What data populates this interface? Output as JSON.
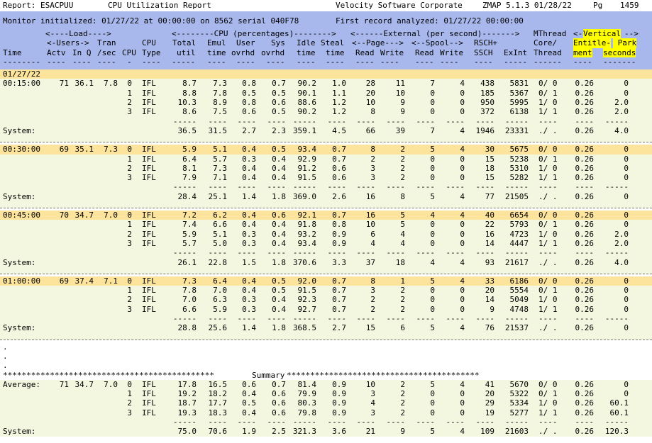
{
  "report": {
    "report_label": "Report: ESACPUU",
    "title": "CPU Utilization Report",
    "vendor": "Velocity Software Corporate",
    "version_date": "ZMAP 5.1.3 01/28/22",
    "page_label": "Pg",
    "page_number": "1459",
    "monitor_line": "Monitor initialized: 01/27/22 at 00:00:00 on 8562 serial 040F78",
    "first_record": "First record analyzed: 01/27/22 00:00:00"
  },
  "headers": {
    "row1": {
      "load": "<----Load---->",
      "cpu_pct": "<--------CPU (percentages)-------->",
      "external": "<------External (per second)------->",
      "mthread": "MThread",
      "vertical_l": "<-",
      "vertical": "Vertical",
      "vertical_r": "-->"
    },
    "row2": {
      "users": "<-Users->",
      "tran": "Tran",
      "cpu": "CPU",
      "total": "Total",
      "emul": "Emul",
      "user": "User",
      "sys": "Sys",
      "idle": "Idle",
      "steal": "Steal",
      "page": "<--Page--->",
      "spool": "<--Spool-->",
      "rsch": "RSCH+",
      "core": "Core/",
      "entitle": "Entitle-",
      "park": " Park"
    },
    "row3": {
      "time": "Time",
      "actv": "Actv",
      "inq": "In Q",
      "sec": "/sec",
      "cpu": "CPU",
      "type": "Type",
      "util": "util",
      "emul_time": "time",
      "ovrhd1": "ovrhd",
      "ovrhd2": "ovrhd",
      "idle_time": "time",
      "steal_time": "time",
      "read1": "Read",
      "write1": "Write",
      "read2": "Read",
      "write2": "Write",
      "ssch": "SSCH",
      "exint": "ExInt",
      "thread": "Thread",
      "ment": "ment",
      "seconds": "seconds"
    },
    "dash_row": "-------- ---- ---- ---- -  ----  -----  ----  ----  ----  ----  ----  ----  ----  ----  ----  ----  ----- ----- ------ ---- ------- ",
    "dashes": {
      "time": "--------",
      "actv": "----",
      "inq": "----",
      "sec": "----",
      "cpu": "-",
      "type": "----",
      "util": "-----",
      "emul": "----",
      "user": "----",
      "sys": "----",
      "idle": "----",
      "steal": "----",
      "read1": "----",
      "write1": "----",
      "read2": "----",
      "write2": "----",
      "rsch": "----",
      "exint": "-----",
      "thread": "------",
      "ment": "----",
      "seconds": "-------"
    }
  },
  "date_label": "01/27/22",
  "groups": [
    {
      "time": "00:15:00",
      "actv": "71",
      "inq": "36.1",
      "tran": "7.8",
      "rows": [
        {
          "cpu": "0",
          "type": "IFL",
          "total": "8.7",
          "emul": "7.3",
          "user": "0.8",
          "sys": "0.7",
          "idle": "90.2",
          "steal": "1.0",
          "pread": "28",
          "pwrite": "11",
          "sread": "7",
          "swrite": "4",
          "rsch": "438",
          "exint": "5831",
          "mthread": "0/ 0",
          "ent": "0.26",
          "park": "0"
        },
        {
          "cpu": "1",
          "type": "IFL",
          "total": "8.8",
          "emul": "7.8",
          "user": "0.5",
          "sys": "0.5",
          "idle": "90.1",
          "steal": "1.1",
          "pread": "20",
          "pwrite": "10",
          "sread": "0",
          "swrite": "0",
          "rsch": "185",
          "exint": "5367",
          "mthread": "0/ 1",
          "ent": "0.26",
          "park": "0"
        },
        {
          "cpu": "2",
          "type": "IFL",
          "total": "10.3",
          "emul": "8.9",
          "user": "0.8",
          "sys": "0.6",
          "idle": "88.6",
          "steal": "1.2",
          "pread": "10",
          "pwrite": "9",
          "sread": "0",
          "swrite": "0",
          "rsch": "950",
          "exint": "5995",
          "mthread": "1/ 0",
          "ent": "0.26",
          "park": "2.0"
        },
        {
          "cpu": "3",
          "type": "IFL",
          "total": "8.6",
          "emul": "7.5",
          "user": "0.6",
          "sys": "0.5",
          "idle": "90.2",
          "steal": "1.2",
          "pread": "8",
          "pwrite": "9",
          "sread": "0",
          "swrite": "0",
          "rsch": "372",
          "exint": "6138",
          "mthread": "1/ 1",
          "ent": "0.26",
          "park": "2.0"
        }
      ],
      "system": {
        "label": "System:",
        "total": "36.5",
        "emul": "31.5",
        "user": "2.7",
        "sys": "2.3",
        "idle": "359.1",
        "steal": "4.5",
        "pread": "66",
        "pwrite": "39",
        "sread": "7",
        "swrite": "4",
        "rsch": "1946",
        "exint": "23331",
        "mthread": "./ .",
        "ent": "0.26",
        "park": "4.0"
      }
    },
    {
      "time": "00:30:00",
      "actv": "69",
      "inq": "35.1",
      "tran": "7.3",
      "rows": [
        {
          "cpu": "0",
          "type": "IFL",
          "total": "5.9",
          "emul": "5.1",
          "user": "0.4",
          "sys": "0.5",
          "idle": "93.4",
          "steal": "0.7",
          "pread": "8",
          "pwrite": "2",
          "sread": "5",
          "swrite": "4",
          "rsch": "30",
          "exint": "5675",
          "mthread": "0/ 0",
          "ent": "0.26",
          "park": "0"
        },
        {
          "cpu": "1",
          "type": "IFL",
          "total": "6.4",
          "emul": "5.7",
          "user": "0.3",
          "sys": "0.4",
          "idle": "92.9",
          "steal": "0.7",
          "pread": "2",
          "pwrite": "2",
          "sread": "0",
          "swrite": "0",
          "rsch": "15",
          "exint": "5238",
          "mthread": "0/ 1",
          "ent": "0.26",
          "park": "0"
        },
        {
          "cpu": "2",
          "type": "IFL",
          "total": "8.1",
          "emul": "7.3",
          "user": "0.4",
          "sys": "0.4",
          "idle": "91.2",
          "steal": "0.6",
          "pread": "3",
          "pwrite": "2",
          "sread": "0",
          "swrite": "0",
          "rsch": "18",
          "exint": "5310",
          "mthread": "1/ 0",
          "ent": "0.26",
          "park": "0"
        },
        {
          "cpu": "3",
          "type": "IFL",
          "total": "7.9",
          "emul": "7.1",
          "user": "0.4",
          "sys": "0.4",
          "idle": "91.5",
          "steal": "0.6",
          "pread": "3",
          "pwrite": "2",
          "sread": "0",
          "swrite": "0",
          "rsch": "15",
          "exint": "5282",
          "mthread": "1/ 1",
          "ent": "0.26",
          "park": "0"
        }
      ],
      "system": {
        "label": "System:",
        "total": "28.4",
        "emul": "25.1",
        "user": "1.4",
        "sys": "1.8",
        "idle": "369.0",
        "steal": "2.6",
        "pread": "16",
        "pwrite": "8",
        "sread": "5",
        "swrite": "4",
        "rsch": "77",
        "exint": "21505",
        "mthread": "./ .",
        "ent": "0.26",
        "park": "0"
      }
    },
    {
      "time": "00:45:00",
      "actv": "70",
      "inq": "34.7",
      "tran": "7.0",
      "rows": [
        {
          "cpu": "0",
          "type": "IFL",
          "total": "7.2",
          "emul": "6.2",
          "user": "0.4",
          "sys": "0.6",
          "idle": "92.1",
          "steal": "0.7",
          "pread": "16",
          "pwrite": "5",
          "sread": "4",
          "swrite": "4",
          "rsch": "40",
          "exint": "6654",
          "mthread": "0/ 0",
          "ent": "0.26",
          "park": "0"
        },
        {
          "cpu": "1",
          "type": "IFL",
          "total": "7.4",
          "emul": "6.6",
          "user": "0.4",
          "sys": "0.4",
          "idle": "91.8",
          "steal": "0.8",
          "pread": "10",
          "pwrite": "5",
          "sread": "0",
          "swrite": "0",
          "rsch": "22",
          "exint": "5793",
          "mthread": "0/ 1",
          "ent": "0.26",
          "park": "0"
        },
        {
          "cpu": "2",
          "type": "IFL",
          "total": "5.9",
          "emul": "5.1",
          "user": "0.3",
          "sys": "0.4",
          "idle": "93.2",
          "steal": "0.9",
          "pread": "6",
          "pwrite": "4",
          "sread": "0",
          "swrite": "0",
          "rsch": "16",
          "exint": "4723",
          "mthread": "1/ 0",
          "ent": "0.26",
          "park": "2.0"
        },
        {
          "cpu": "3",
          "type": "IFL",
          "total": "5.7",
          "emul": "5.0",
          "user": "0.3",
          "sys": "0.4",
          "idle": "93.4",
          "steal": "0.9",
          "pread": "4",
          "pwrite": "4",
          "sread": "0",
          "swrite": "0",
          "rsch": "14",
          "exint": "4447",
          "mthread": "1/ 1",
          "ent": "0.26",
          "park": "2.0"
        }
      ],
      "system": {
        "label": "System:",
        "total": "26.1",
        "emul": "22.8",
        "user": "1.5",
        "sys": "1.8",
        "idle": "370.6",
        "steal": "3.3",
        "pread": "37",
        "pwrite": "18",
        "sread": "4",
        "swrite": "4",
        "rsch": "93",
        "exint": "21617",
        "mthread": "./ .",
        "ent": "0.26",
        "park": "4.0"
      }
    },
    {
      "time": "01:00:00",
      "actv": "69",
      "inq": "37.4",
      "tran": "7.1",
      "rows": [
        {
          "cpu": "0",
          "type": "IFL",
          "total": "7.3",
          "emul": "6.4",
          "user": "0.4",
          "sys": "0.5",
          "idle": "92.0",
          "steal": "0.7",
          "pread": "8",
          "pwrite": "1",
          "sread": "5",
          "swrite": "4",
          "rsch": "33",
          "exint": "6186",
          "mthread": "0/ 0",
          "ent": "0.26",
          "park": "0"
        },
        {
          "cpu": "1",
          "type": "IFL",
          "total": "7.8",
          "emul": "7.0",
          "user": "0.4",
          "sys": "0.5",
          "idle": "91.5",
          "steal": "0.7",
          "pread": "3",
          "pwrite": "2",
          "sread": "0",
          "swrite": "0",
          "rsch": "20",
          "exint": "5554",
          "mthread": "0/ 1",
          "ent": "0.26",
          "park": "0"
        },
        {
          "cpu": "2",
          "type": "IFL",
          "total": "7.0",
          "emul": "6.3",
          "user": "0.3",
          "sys": "0.4",
          "idle": "92.3",
          "steal": "0.7",
          "pread": "2",
          "pwrite": "2",
          "sread": "0",
          "swrite": "0",
          "rsch": "14",
          "exint": "5049",
          "mthread": "1/ 0",
          "ent": "0.26",
          "park": "0"
        },
        {
          "cpu": "3",
          "type": "IFL",
          "total": "6.6",
          "emul": "5.9",
          "user": "0.3",
          "sys": "0.4",
          "idle": "92.7",
          "steal": "0.7",
          "pread": "2",
          "pwrite": "2",
          "sread": "0",
          "swrite": "0",
          "rsch": "9",
          "exint": "4748",
          "mthread": "1/ 1",
          "ent": "0.26",
          "park": "0"
        }
      ],
      "system": {
        "label": "System:",
        "total": "28.8",
        "emul": "25.6",
        "user": "1.4",
        "sys": "1.8",
        "idle": "368.5",
        "steal": "2.7",
        "pread": "15",
        "pwrite": "6",
        "sread": "5",
        "swrite": "4",
        "rsch": "76",
        "exint": "21537",
        "mthread": "./ .",
        "ent": "0.26",
        "park": "0"
      }
    }
  ],
  "dots": [
    ".",
    ".",
    "."
  ],
  "summary": {
    "banner_left": "*********************************************",
    "banner_label": "Summary",
    "banner_right": "*****************************************",
    "average": {
      "label": "Average:",
      "actv": "71",
      "inq": "34.7",
      "tran": "7.0",
      "rows": [
        {
          "cpu": "0",
          "type": "IFL",
          "total": "17.8",
          "emul": "16.5",
          "user": "0.6",
          "sys": "0.7",
          "idle": "81.4",
          "steal": "0.9",
          "pread": "10",
          "pwrite": "2",
          "sread": "5",
          "swrite": "4",
          "rsch": "41",
          "exint": "5670",
          "mthread": "0/ 0",
          "ent": "0.26",
          "park": "0"
        },
        {
          "cpu": "1",
          "type": "IFL",
          "total": "19.2",
          "emul": "18.2",
          "user": "0.4",
          "sys": "0.6",
          "idle": "79.9",
          "steal": "0.9",
          "pread": "3",
          "pwrite": "2",
          "sread": "0",
          "swrite": "0",
          "rsch": "20",
          "exint": "5322",
          "mthread": "0/ 1",
          "ent": "0.26",
          "park": "0"
        },
        {
          "cpu": "2",
          "type": "IFL",
          "total": "18.7",
          "emul": "17.7",
          "user": "0.5",
          "sys": "0.6",
          "idle": "80.3",
          "steal": "0.9",
          "pread": "4",
          "pwrite": "2",
          "sread": "0",
          "swrite": "0",
          "rsch": "29",
          "exint": "5334",
          "mthread": "1/ 0",
          "ent": "0.26",
          "park": "60.1"
        },
        {
          "cpu": "3",
          "type": "IFL",
          "total": "19.3",
          "emul": "18.3",
          "user": "0.4",
          "sys": "0.6",
          "idle": "79.8",
          "steal": "0.9",
          "pread": "3",
          "pwrite": "2",
          "sread": "0",
          "swrite": "0",
          "rsch": "19",
          "exint": "5277",
          "mthread": "1/ 1",
          "ent": "0.26",
          "park": "60.1"
        }
      ]
    },
    "system": {
      "label": "System:",
      "total": "75.0",
      "emul": "70.6",
      "user": "1.9",
      "sys": "2.5",
      "idle": "321.3",
      "steal": "3.6",
      "pread": "21",
      "pwrite": "9",
      "sread": "5",
      "swrite": "4",
      "rsch": "109",
      "exint": "21603",
      "mthread": "./ .",
      "ent": "0.26",
      "park": "120.3"
    }
  },
  "colors": {
    "header_band": "#a8b8ec",
    "group_head": "#fde49c",
    "group_body": "#f4f7df",
    "highlight": "#ffff00"
  }
}
